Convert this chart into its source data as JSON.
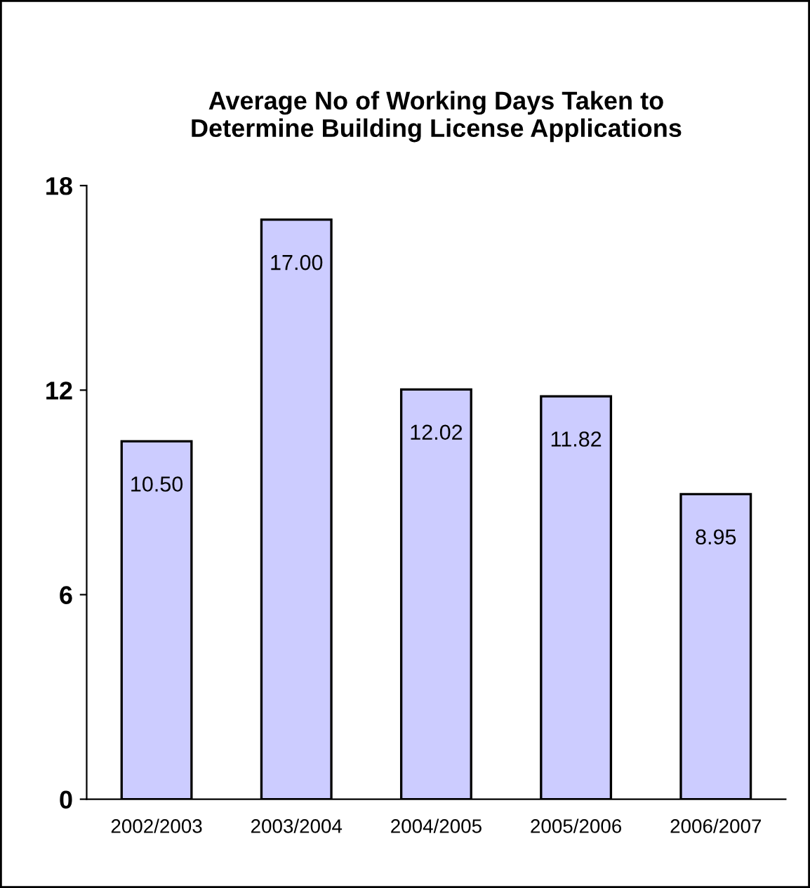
{
  "chart_data": {
    "type": "bar",
    "title": "Average No of Working Days Taken to\nDetermine Building License Applications",
    "categories": [
      "2002/2003",
      "2003/2004",
      "2004/2005",
      "2005/2006",
      "2006/2007"
    ],
    "values": [
      10.5,
      17.0,
      12.02,
      11.82,
      8.95
    ],
    "value_labels": [
      "10.50",
      "17.00",
      "12.02",
      "11.82",
      "8.95"
    ],
    "color": "#ccccff",
    "ylim": [
      0,
      18
    ],
    "yticks": [
      0,
      6,
      12,
      18
    ],
    "grid": false,
    "legend": false
  }
}
